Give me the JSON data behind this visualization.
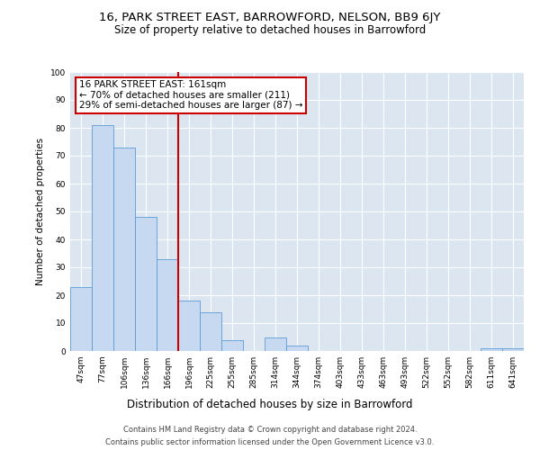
{
  "title": "16, PARK STREET EAST, BARROWFORD, NELSON, BB9 6JY",
  "subtitle": "Size of property relative to detached houses in Barrowford",
  "xlabel": "Distribution of detached houses by size in Barrowford",
  "ylabel": "Number of detached properties",
  "categories": [
    "47sqm",
    "77sqm",
    "106sqm",
    "136sqm",
    "166sqm",
    "196sqm",
    "225sqm",
    "255sqm",
    "285sqm",
    "314sqm",
    "344sqm",
    "374sqm",
    "403sqm",
    "433sqm",
    "463sqm",
    "493sqm",
    "522sqm",
    "552sqm",
    "582sqm",
    "611sqm",
    "641sqm"
  ],
  "values": [
    23,
    81,
    73,
    48,
    33,
    18,
    14,
    4,
    0,
    5,
    2,
    0,
    0,
    0,
    0,
    0,
    0,
    0,
    0,
    1,
    1
  ],
  "bar_color": "#c6d9f0",
  "bar_edge_color": "#5b9bd5",
  "vline_x": 4.5,
  "vline_color": "#cc0000",
  "annotation_text": "16 PARK STREET EAST: 161sqm\n← 70% of detached houses are smaller (211)\n29% of semi-detached houses are larger (87) →",
  "annotation_box_color": "#ffffff",
  "annotation_box_edge_color": "#cc0000",
  "ylim": [
    0,
    100
  ],
  "yticks": [
    0,
    10,
    20,
    30,
    40,
    50,
    60,
    70,
    80,
    90,
    100
  ],
  "plot_bg_color": "#dce6f1",
  "footer_line1": "Contains HM Land Registry data © Crown copyright and database right 2024.",
  "footer_line2": "Contains public sector information licensed under the Open Government Licence v3.0.",
  "title_fontsize": 9.5,
  "subtitle_fontsize": 8.5,
  "xlabel_fontsize": 8.5,
  "ylabel_fontsize": 7.5,
  "tick_fontsize": 6.5,
  "annotation_fontsize": 7.5,
  "footer_fontsize": 6.0
}
